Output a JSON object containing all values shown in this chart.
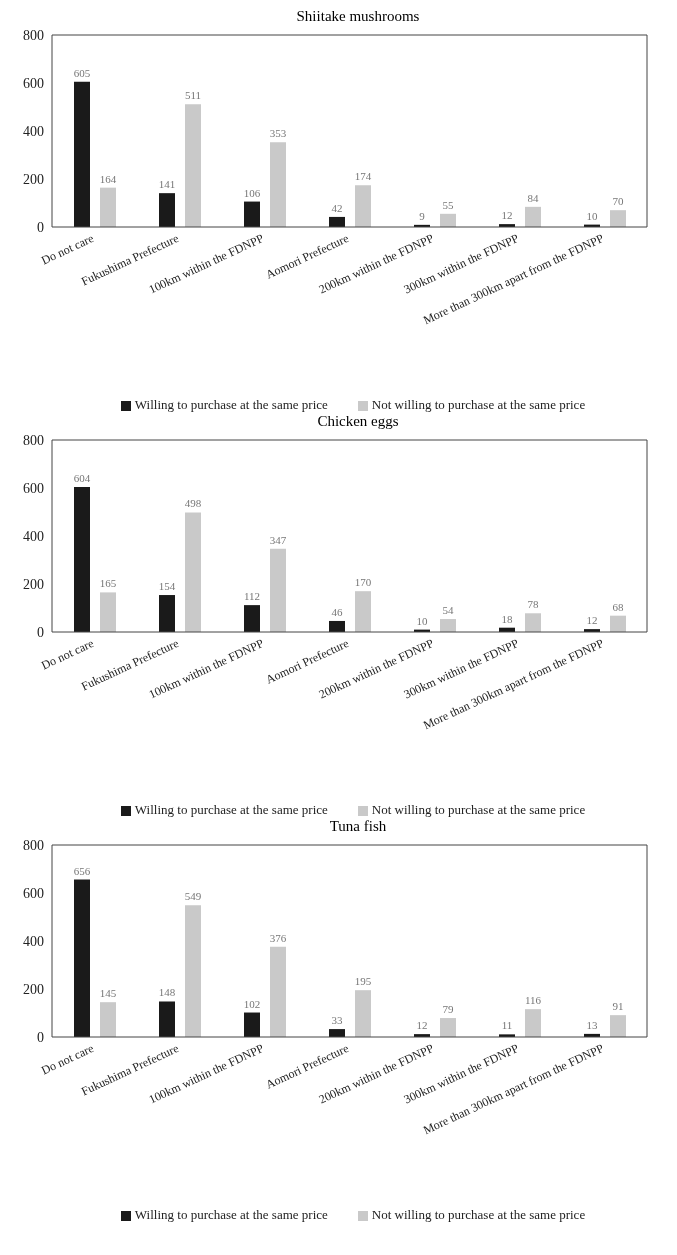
{
  "chart_data": [
    {
      "type": "bar",
      "title": "Shiitake mushrooms",
      "categories": [
        "Do not care",
        "Fukushima Prefecture",
        "100km within the FDNPP",
        "Aomori Prefecture",
        "200km within the FDNPP",
        "300km within the FDNPP",
        "More than 300km apart from the FDNPP"
      ],
      "series": [
        {
          "name": "Willing to purchase at the same price",
          "color": "#1a1a1a",
          "values": [
            605,
            141,
            106,
            42,
            9,
            12,
            10
          ]
        },
        {
          "name": "Not willing to purchase at the same price",
          "color": "#c9c9c9",
          "values": [
            164,
            511,
            353,
            174,
            55,
            84,
            70
          ]
        }
      ],
      "ylim": [
        0,
        800
      ],
      "yticks": [
        0,
        200,
        400,
        600,
        800
      ],
      "data_labels": true,
      "legend": "bottom",
      "grid": false
    },
    {
      "type": "bar",
      "title": "Chicken eggs",
      "categories": [
        "Do not care",
        "Fukushima Prefecture",
        "100km within the FDNPP",
        "Aomori Prefecture",
        "200km within the FDNPP",
        "300km within the FDNPP",
        "More than 300km apart from the FDNPP"
      ],
      "series": [
        {
          "name": "Willing to purchase at the same price",
          "color": "#1a1a1a",
          "values": [
            604,
            154,
            112,
            46,
            10,
            18,
            12
          ]
        },
        {
          "name": "Not willing to purchase at the same price",
          "color": "#c9c9c9",
          "values": [
            165,
            498,
            347,
            170,
            54,
            78,
            68
          ]
        }
      ],
      "ylim": [
        0,
        800
      ],
      "yticks": [
        0,
        200,
        400,
        600,
        800
      ],
      "data_labels": true,
      "legend": "bottom",
      "grid": false
    },
    {
      "type": "bar",
      "title": "Tuna fish",
      "categories": [
        "Do not care",
        "Fukushima Prefecture",
        "100km within the FDNPP",
        "Aomori Prefecture",
        "200km within the FDNPP",
        "300km within the FDNPP",
        "More than 300km apart from the FDNPP"
      ],
      "series": [
        {
          "name": "Willing to purchase at the same price",
          "color": "#1a1a1a",
          "values": [
            656,
            148,
            102,
            33,
            12,
            11,
            13
          ]
        },
        {
          "name": "Not willing to purchase at the same price",
          "color": "#c9c9c9",
          "values": [
            145,
            549,
            376,
            195,
            79,
            116,
            91
          ]
        }
      ],
      "ylim": [
        0,
        800
      ],
      "yticks": [
        0,
        200,
        400,
        600,
        800
      ],
      "data_labels": true,
      "legend": "bottom",
      "grid": false
    }
  ]
}
